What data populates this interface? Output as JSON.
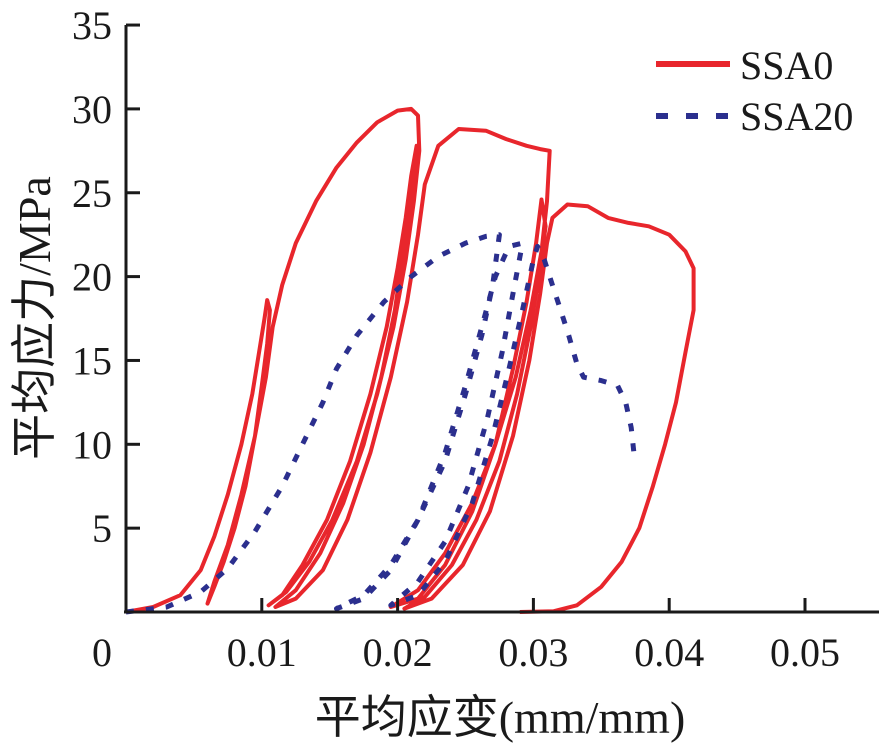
{
  "chart_data": {
    "type": "line",
    "title": "",
    "xlabel": "平均应变(mm/mm)",
    "ylabel": "平均应力/MPa",
    "xlim": [
      0,
      0.055
    ],
    "ylim": [
      0,
      35
    ],
    "xticks": [
      0,
      0.01,
      0.02,
      0.03,
      0.04,
      0.05
    ],
    "xtick_labels": [
      "0",
      "0.01",
      "0.02",
      "0.03",
      "0.04",
      "0.05"
    ],
    "yticks": [
      5,
      10,
      15,
      20,
      25,
      30,
      35
    ],
    "ytick_labels": [
      "5",
      "10",
      "15",
      "20",
      "25",
      "30",
      "35"
    ],
    "grid": false,
    "legend": {
      "position": "top-right",
      "entries": [
        "SSA0",
        "SSA20"
      ]
    },
    "series": [
      {
        "name": "SSA0",
        "color": "#e8262c",
        "style": "solid",
        "points": [
          [
            0.0,
            0.0
          ],
          [
            0.002,
            0.3
          ],
          [
            0.004,
            1.0
          ],
          [
            0.0055,
            2.5
          ],
          [
            0.0065,
            4.5
          ],
          [
            0.0075,
            7.0
          ],
          [
            0.0085,
            10.0
          ],
          [
            0.0093,
            13.0
          ],
          [
            0.0098,
            15.5
          ],
          [
            0.0102,
            17.5
          ],
          [
            0.0104,
            18.6
          ],
          [
            0.0106,
            18.0
          ],
          [
            0.0104,
            16.0
          ],
          [
            0.01,
            13.5
          ],
          [
            0.0095,
            10.5
          ],
          [
            0.0088,
            7.5
          ],
          [
            0.008,
            5.0
          ],
          [
            0.0072,
            3.0
          ],
          [
            0.0065,
            1.5
          ],
          [
            0.006,
            0.5
          ],
          [
            0.0065,
            1.8
          ],
          [
            0.0075,
            4.0
          ],
          [
            0.0085,
            7.0
          ],
          [
            0.0095,
            10.5
          ],
          [
            0.0103,
            14.0
          ],
          [
            0.0108,
            17.0
          ],
          [
            0.0115,
            19.5
          ],
          [
            0.0125,
            22.0
          ],
          [
            0.014,
            24.5
          ],
          [
            0.0155,
            26.5
          ],
          [
            0.017,
            28.0
          ],
          [
            0.0185,
            29.2
          ],
          [
            0.02,
            29.9
          ],
          [
            0.021,
            30.0
          ],
          [
            0.0215,
            29.6
          ],
          [
            0.0216,
            27.5
          ],
          [
            0.0212,
            24.5
          ],
          [
            0.0206,
            21.0
          ],
          [
            0.0197,
            17.0
          ],
          [
            0.0185,
            13.0
          ],
          [
            0.017,
            9.0
          ],
          [
            0.0152,
            5.5
          ],
          [
            0.0135,
            3.0
          ],
          [
            0.0118,
            1.2
          ],
          [
            0.0105,
            0.4
          ],
          [
            0.0115,
            1.0
          ],
          [
            0.013,
            2.8
          ],
          [
            0.0148,
            5.5
          ],
          [
            0.0165,
            9.0
          ],
          [
            0.018,
            13.0
          ],
          [
            0.0192,
            17.0
          ],
          [
            0.02,
            20.5
          ],
          [
            0.0206,
            23.5
          ],
          [
            0.021,
            26.0
          ],
          [
            0.0214,
            27.8
          ],
          [
            0.021,
            25.0
          ],
          [
            0.0205,
            22.0
          ],
          [
            0.0198,
            18.0
          ],
          [
            0.0188,
            14.0
          ],
          [
            0.0175,
            10.0
          ],
          [
            0.016,
            6.5
          ],
          [
            0.0143,
            3.5
          ],
          [
            0.0125,
            1.3
          ],
          [
            0.011,
            0.3
          ],
          [
            0.0125,
            0.8
          ],
          [
            0.0145,
            2.5
          ],
          [
            0.0163,
            5.5
          ],
          [
            0.018,
            9.5
          ],
          [
            0.0195,
            14.0
          ],
          [
            0.0207,
            18.5
          ],
          [
            0.0215,
            22.5
          ],
          [
            0.022,
            25.5
          ],
          [
            0.023,
            27.8
          ],
          [
            0.0245,
            28.8
          ],
          [
            0.0265,
            28.7
          ],
          [
            0.028,
            28.2
          ],
          [
            0.0295,
            27.8
          ],
          [
            0.0305,
            27.6
          ],
          [
            0.0312,
            27.5
          ],
          [
            0.031,
            24.5
          ],
          [
            0.0306,
            21.5
          ],
          [
            0.0298,
            18.0
          ],
          [
            0.0287,
            14.0
          ],
          [
            0.0272,
            10.0
          ],
          [
            0.0255,
            6.5
          ],
          [
            0.0235,
            3.5
          ],
          [
            0.0215,
            1.3
          ],
          [
            0.0195,
            0.3
          ],
          [
            0.0215,
            0.8
          ],
          [
            0.0235,
            2.8
          ],
          [
            0.0255,
            6.0
          ],
          [
            0.0272,
            10.0
          ],
          [
            0.0285,
            14.5
          ],
          [
            0.0295,
            18.5
          ],
          [
            0.0302,
            22.0
          ],
          [
            0.0306,
            24.6
          ],
          [
            0.0309,
            23.0
          ],
          [
            0.0305,
            20.5
          ],
          [
            0.0298,
            17.0
          ],
          [
            0.0288,
            13.0
          ],
          [
            0.0275,
            9.0
          ],
          [
            0.0258,
            5.5
          ],
          [
            0.024,
            2.8
          ],
          [
            0.022,
            0.9
          ],
          [
            0.0205,
            0.2
          ],
          [
            0.0225,
            0.8
          ],
          [
            0.0248,
            2.8
          ],
          [
            0.0268,
            6.0
          ],
          [
            0.0285,
            10.5
          ],
          [
            0.0297,
            15.0
          ],
          [
            0.0305,
            19.0
          ],
          [
            0.031,
            22.0
          ],
          [
            0.0314,
            23.5
          ],
          [
            0.0325,
            24.3
          ],
          [
            0.034,
            24.2
          ],
          [
            0.0355,
            23.5
          ],
          [
            0.037,
            23.2
          ],
          [
            0.0385,
            23.0
          ],
          [
            0.04,
            22.5
          ],
          [
            0.0412,
            21.5
          ],
          [
            0.0418,
            20.5
          ],
          [
            0.0418,
            18.0
          ],
          [
            0.0412,
            15.5
          ],
          [
            0.0405,
            12.5
          ],
          [
            0.0397,
            10.0
          ],
          [
            0.0388,
            7.5
          ],
          [
            0.0378,
            5.0
          ],
          [
            0.0365,
            3.0
          ],
          [
            0.035,
            1.5
          ],
          [
            0.0332,
            0.4
          ],
          [
            0.0315,
            0.05
          ],
          [
            0.029,
            0.0
          ]
        ]
      },
      {
        "name": "SSA20",
        "color": "#2b2f8e",
        "style": "dashed",
        "points": [
          [
            0.0,
            0.0
          ],
          [
            0.003,
            0.3
          ],
          [
            0.0055,
            1.2
          ],
          [
            0.0075,
            2.6
          ],
          [
            0.0095,
            4.8
          ],
          [
            0.0115,
            7.5
          ],
          [
            0.013,
            10.0
          ],
          [
            0.0145,
            12.5
          ],
          [
            0.0155,
            14.5
          ],
          [
            0.017,
            16.5
          ],
          [
            0.019,
            18.5
          ],
          [
            0.021,
            20.0
          ],
          [
            0.023,
            21.2
          ],
          [
            0.025,
            22.0
          ],
          [
            0.0265,
            22.4
          ],
          [
            0.0275,
            22.5
          ],
          [
            0.027,
            19.5
          ],
          [
            0.0262,
            16.5
          ],
          [
            0.025,
            13.0
          ],
          [
            0.0235,
            9.0
          ],
          [
            0.0215,
            5.5
          ],
          [
            0.0195,
            2.8
          ],
          [
            0.0175,
            1.0
          ],
          [
            0.0155,
            0.2
          ],
          [
            0.0175,
            0.8
          ],
          [
            0.0195,
            2.5
          ],
          [
            0.0215,
            5.5
          ],
          [
            0.0235,
            9.5
          ],
          [
            0.025,
            13.5
          ],
          [
            0.0262,
            17.0
          ],
          [
            0.0272,
            20.0
          ],
          [
            0.0282,
            21.8
          ],
          [
            0.0292,
            22.0
          ],
          [
            0.0285,
            19.0
          ],
          [
            0.0277,
            15.5
          ],
          [
            0.0266,
            11.5
          ],
          [
            0.0252,
            7.5
          ],
          [
            0.0235,
            4.2
          ],
          [
            0.0215,
            1.8
          ],
          [
            0.0195,
            0.4
          ],
          [
            0.0215,
            1.0
          ],
          [
            0.0235,
            3.0
          ],
          [
            0.0255,
            6.5
          ],
          [
            0.027,
            10.5
          ],
          [
            0.0282,
            14.5
          ],
          [
            0.0292,
            18.0
          ],
          [
            0.03,
            21.0
          ],
          [
            0.0303,
            21.8
          ],
          [
            0.0308,
            21.0
          ],
          [
            0.0314,
            19.5
          ],
          [
            0.032,
            18.0
          ],
          [
            0.0326,
            16.5
          ],
          [
            0.0332,
            14.8
          ],
          [
            0.0337,
            14.0
          ],
          [
            0.035,
            13.8
          ],
          [
            0.0362,
            13.5
          ],
          [
            0.0368,
            12.5
          ],
          [
            0.0372,
            11.0
          ],
          [
            0.0374,
            9.5
          ],
          [
            0.0375,
            9.0
          ]
        ]
      }
    ]
  }
}
